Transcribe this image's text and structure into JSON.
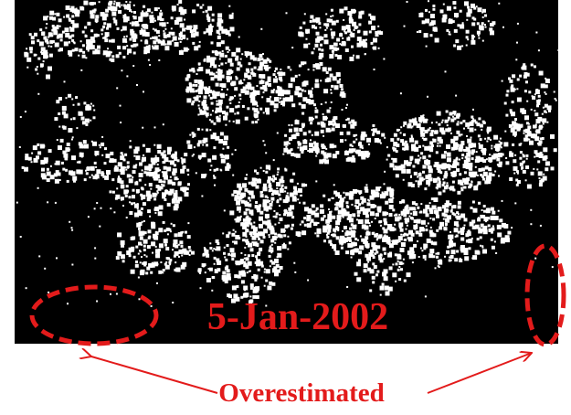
{
  "figure": {
    "date_label": "5-Jan-2002",
    "caption": "Overestimated",
    "colors": {
      "background": "#000000",
      "foreground": "#ffffff",
      "annotation": "#e31b1b"
    }
  }
}
